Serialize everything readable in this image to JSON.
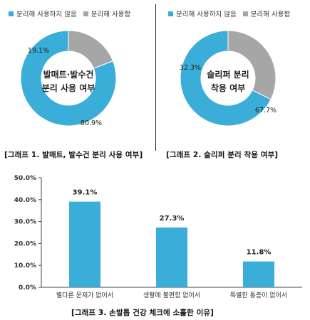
{
  "colors": {
    "primary": "#3AAED8",
    "secondary": "#A6A6A6"
  },
  "donut_legend": {
    "not_separate": "분리해 사용하지 않음",
    "separate": "분리해 사용함"
  },
  "donut1": {
    "center_line1": "발매트·발수건",
    "center_line2": "분리 사용 여부",
    "label_not_separate": "80.9%",
    "label_separate": "19.1%",
    "caption": "[그래프 1. 발매트, 발수건 분리 사용 여부]"
  },
  "donut2": {
    "center_line1": "슬리퍼 분리",
    "center_line2": "착용 여부",
    "label_not_separate": "67.7%",
    "label_separate": "32.3%",
    "caption": "[그래프 2. 슬리퍼 분리 착용 여부]"
  },
  "graph3_caption": "[그래프 3. 손발톱 건강 체크에 소홀한 이유]",
  "chart_data": [
    {
      "type": "pie",
      "title": "발매트·발수건 분리 사용 여부",
      "categories": [
        "분리해 사용하지 않음",
        "분리해 사용함"
      ],
      "values": [
        80.9,
        19.1
      ],
      "colors": [
        "#3AAED8",
        "#A6A6A6"
      ],
      "legend": "top-left"
    },
    {
      "type": "pie",
      "title": "슬리퍼 분리 착용 여부",
      "categories": [
        "분리해 사용하지 않음",
        "분리해 사용함"
      ],
      "values": [
        67.7,
        32.3
      ],
      "colors": [
        "#3AAED8",
        "#A6A6A6"
      ],
      "legend": "top-right"
    },
    {
      "type": "bar",
      "categories": [
        "별다른 문제가 없어서",
        "생활에 불편함 없어서",
        "특별한 통증이 없어서"
      ],
      "values": [
        39.1,
        27.3,
        11.8
      ],
      "value_labels": [
        "39.1%",
        "27.3%",
        "11.8%"
      ],
      "ylim": [
        0,
        50
      ],
      "yticks": [
        "0.0%",
        "10.0%",
        "20.0%",
        "30.0%",
        "40.0%",
        "50.0%"
      ],
      "grid": false,
      "color": "#3AAED8"
    }
  ]
}
